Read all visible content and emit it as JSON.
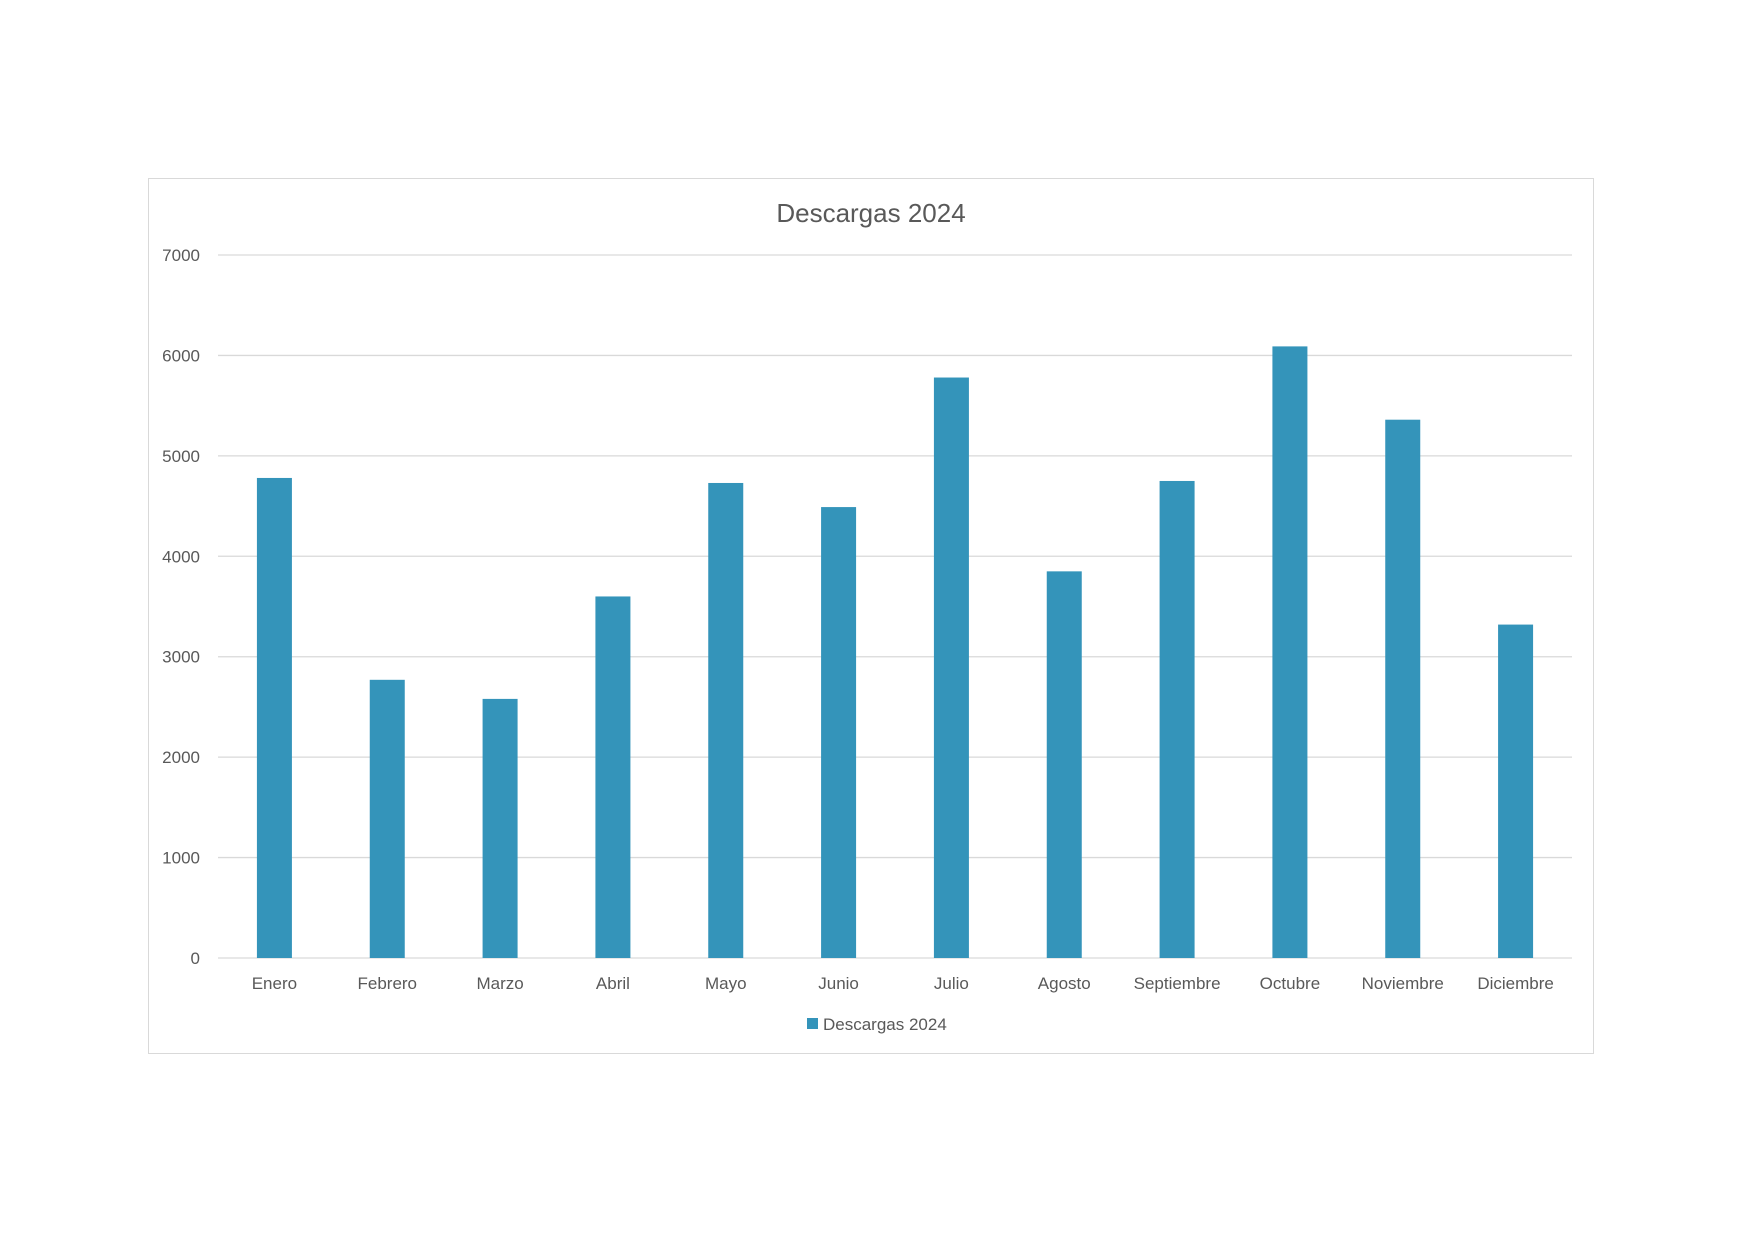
{
  "chart_data": {
    "type": "bar",
    "title": "Descargas 2024",
    "xlabel": "",
    "ylabel": "",
    "categories": [
      "Enero",
      "Febrero",
      "Marzo",
      "Abril",
      "Mayo",
      "Junio",
      "Julio",
      "Agosto",
      "Septiembre",
      "Octubre",
      "Noviembre",
      "Diciembre"
    ],
    "series": [
      {
        "name": "Descargas 2024",
        "values": [
          4780,
          2770,
          2580,
          3600,
          4730,
          4490,
          5780,
          3850,
          4750,
          6090,
          5360,
          3320
        ],
        "color": "#3494ba"
      }
    ],
    "ylim": [
      0,
      7000
    ],
    "yticks": [
      0,
      1000,
      2000,
      3000,
      4000,
      5000,
      6000,
      7000
    ],
    "grid": true,
    "legend": "bottom-center",
    "colors": {
      "gridline": "#d9d9d9",
      "text": "#595959",
      "border": "#d9d9d9"
    }
  }
}
